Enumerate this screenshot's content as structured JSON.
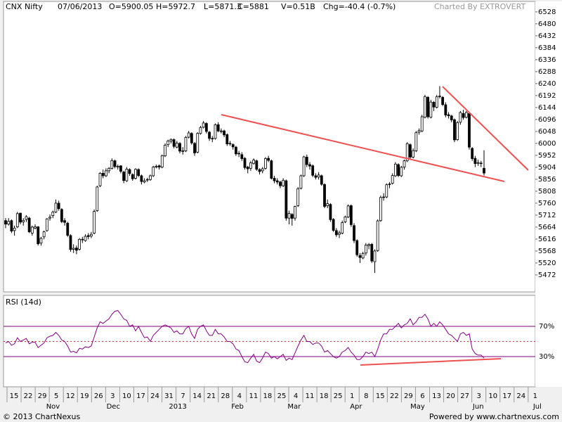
{
  "chart_data": [
    {
      "type": "candlestick",
      "title": "CNX Nifty",
      "date": "07/06/2013",
      "open_text": "O=5900.05",
      "high_text": "H=5972.7",
      "low_text": "L=5871.3",
      "close_text": "C=5881",
      "volume_text": "V=0.51B",
      "change_text": "Chg=-40.4 (-0.7%)",
      "credit": "Charted By EXTROVERT",
      "ylim": [
        5404,
        6570
      ],
      "yticks": [
        5472,
        5520,
        5568,
        5616,
        5664,
        5712,
        5760,
        5808,
        5856,
        5904,
        5952,
        6000,
        6048,
        6096,
        6144,
        6192,
        6240,
        6288,
        6336,
        6384,
        6432,
        6480,
        6528
      ],
      "up_color": "#ffffff",
      "down_color": "#000000",
      "candles": [
        [
          5690,
          5700,
          5660,
          5676
        ],
        [
          5676,
          5700,
          5670,
          5687
        ],
        [
          5690,
          5695,
          5640,
          5648
        ],
        [
          5650,
          5670,
          5630,
          5660
        ],
        [
          5665,
          5725,
          5660,
          5718
        ],
        [
          5720,
          5722,
          5675,
          5684
        ],
        [
          5685,
          5700,
          5670,
          5691
        ],
        [
          5695,
          5712,
          5685,
          5706
        ],
        [
          5700,
          5705,
          5640,
          5645
        ],
        [
          5640,
          5670,
          5630,
          5664
        ],
        [
          5660,
          5675,
          5655,
          5665
        ],
        [
          5665,
          5668,
          5590,
          5597
        ],
        [
          5600,
          5625,
          5590,
          5619
        ],
        [
          5625,
          5650,
          5615,
          5645
        ],
        [
          5650,
          5700,
          5645,
          5697
        ],
        [
          5700,
          5715,
          5690,
          5704
        ],
        [
          5710,
          5730,
          5700,
          5724
        ],
        [
          5725,
          5775,
          5720,
          5760
        ],
        [
          5760,
          5770,
          5730,
          5738
        ],
        [
          5735,
          5740,
          5680,
          5686
        ],
        [
          5690,
          5700,
          5670,
          5683
        ],
        [
          5680,
          5685,
          5625,
          5631
        ],
        [
          5630,
          5635,
          5565,
          5574
        ],
        [
          5575,
          5595,
          5560,
          5579
        ],
        [
          5580,
          5590,
          5555,
          5571
        ],
        [
          5575,
          5620,
          5570,
          5615
        ],
        [
          5615,
          5625,
          5600,
          5614
        ],
        [
          5610,
          5635,
          5605,
          5627
        ],
        [
          5630,
          5640,
          5615,
          5626
        ],
        [
          5628,
          5645,
          5620,
          5635
        ],
        [
          5640,
          5735,
          5635,
          5727
        ],
        [
          5730,
          5830,
          5725,
          5825
        ],
        [
          5830,
          5885,
          5825,
          5880
        ],
        [
          5880,
          5895,
          5860,
          5870
        ],
        [
          5870,
          5900,
          5865,
          5890
        ],
        [
          5890,
          5905,
          5880,
          5900
        ],
        [
          5900,
          5940,
          5895,
          5931
        ],
        [
          5930,
          5935,
          5900,
          5907
        ],
        [
          5905,
          5915,
          5895,
          5908
        ],
        [
          5910,
          5912,
          5880,
          5888
        ],
        [
          5885,
          5890,
          5840,
          5851
        ],
        [
          5850,
          5905,
          5845,
          5897
        ],
        [
          5895,
          5900,
          5870,
          5879
        ],
        [
          5875,
          5880,
          5850,
          5858
        ],
        [
          5860,
          5900,
          5855,
          5896
        ],
        [
          5895,
          5900,
          5865,
          5871
        ],
        [
          5870,
          5875,
          5835,
          5847
        ],
        [
          5845,
          5860,
          5840,
          5850
        ],
        [
          5855,
          5862,
          5845,
          5855
        ],
        [
          5855,
          5875,
          5850,
          5870
        ],
        [
          5870,
          5910,
          5865,
          5905
        ],
        [
          5905,
          5915,
          5900,
          5908
        ],
        [
          5910,
          5915,
          5895,
          5905
        ],
        [
          5905,
          5955,
          5900,
          5951
        ],
        [
          5950,
          6000,
          5945,
          5993
        ],
        [
          5995,
          6015,
          5985,
          6010
        ],
        [
          6010,
          6020,
          6000,
          6016
        ],
        [
          6015,
          6020,
          5980,
          5988
        ],
        [
          5985,
          6010,
          5980,
          6001
        ],
        [
          6000,
          6005,
          5960,
          5969
        ],
        [
          5970,
          5985,
          5955,
          5969
        ],
        [
          5970,
          6030,
          5965,
          6024
        ],
        [
          6025,
          6050,
          6020,
          6042
        ],
        [
          6040,
          6045,
          5995,
          6002
        ],
        [
          6000,
          6005,
          5950,
          5962
        ],
        [
          5965,
          6045,
          5960,
          6040
        ],
        [
          6040,
          6070,
          6035,
          6064
        ],
        [
          6065,
          6090,
          6060,
          6082
        ],
        [
          6080,
          6085,
          6040,
          6048
        ],
        [
          6045,
          6050,
          6010,
          6020
        ],
        [
          6020,
          6030,
          6005,
          6020
        ],
        [
          6020,
          6080,
          6015,
          6075
        ],
        [
          6075,
          6085,
          6045,
          6050
        ],
        [
          6050,
          6060,
          6040,
          6049
        ],
        [
          6050,
          6055,
          6025,
          6034
        ],
        [
          6035,
          6040,
          5990,
          5998
        ],
        [
          6000,
          6010,
          5990,
          5999
        ],
        [
          5995,
          6000,
          5975,
          5986
        ],
        [
          5985,
          5990,
          5950,
          5958
        ],
        [
          5960,
          5970,
          5945,
          5959
        ],
        [
          5955,
          5965,
          5930,
          5939
        ],
        [
          5940,
          5945,
          5895,
          5903
        ],
        [
          5905,
          5910,
          5880,
          5898
        ],
        [
          5900,
          5930,
          5890,
          5922
        ],
        [
          5920,
          5940,
          5915,
          5933
        ],
        [
          5930,
          5935,
          5890,
          5896
        ],
        [
          5895,
          5900,
          5875,
          5887
        ],
        [
          5890,
          5905,
          5880,
          5898
        ],
        [
          5900,
          5945,
          5895,
          5939
        ],
        [
          5940,
          5950,
          5925,
          5932
        ],
        [
          5930,
          5935,
          5855,
          5860
        ],
        [
          5860,
          5870,
          5840,
          5850
        ],
        [
          5850,
          5860,
          5835,
          5845
        ],
        [
          5845,
          5850,
          5820,
          5830
        ],
        [
          5830,
          5860,
          5825,
          5852
        ],
        [
          5850,
          5855,
          5690,
          5700
        ],
        [
          5700,
          5730,
          5675,
          5719
        ],
        [
          5715,
          5720,
          5670,
          5699
        ],
        [
          5700,
          5750,
          5690,
          5747
        ],
        [
          5750,
          5825,
          5745,
          5818
        ],
        [
          5820,
          5875,
          5815,
          5870
        ],
        [
          5870,
          5950,
          5865,
          5946
        ],
        [
          5945,
          5955,
          5905,
          5915
        ],
        [
          5915,
          5925,
          5895,
          5909
        ],
        [
          5910,
          5915,
          5865,
          5872
        ],
        [
          5870,
          5880,
          5855,
          5864
        ],
        [
          5865,
          5885,
          5855,
          5873
        ],
        [
          5870,
          5875,
          5830,
          5836
        ],
        [
          5835,
          5840,
          5740,
          5747
        ],
        [
          5750,
          5775,
          5740,
          5758
        ],
        [
          5755,
          5760,
          5685,
          5694
        ],
        [
          5695,
          5700,
          5645,
          5651
        ],
        [
          5650,
          5660,
          5625,
          5633
        ],
        [
          5635,
          5650,
          5620,
          5641
        ],
        [
          5640,
          5690,
          5635,
          5682
        ],
        [
          5685,
          5710,
          5680,
          5705
        ],
        [
          5705,
          5755,
          5700,
          5749
        ],
        [
          5750,
          5755,
          5665,
          5674
        ],
        [
          5670,
          5680,
          5600,
          5610
        ],
        [
          5610,
          5615,
          5545,
          5553
        ],
        [
          5550,
          5560,
          5520,
          5542
        ],
        [
          5540,
          5565,
          5535,
          5558
        ],
        [
          5560,
          5600,
          5550,
          5592
        ],
        [
          5590,
          5600,
          5575,
          5594
        ],
        [
          5595,
          5600,
          5520,
          5528
        ],
        [
          5525,
          5575,
          5480,
          5568
        ],
        [
          5570,
          5695,
          5565,
          5689
        ],
        [
          5690,
          5790,
          5685,
          5783
        ],
        [
          5785,
          5800,
          5770,
          5783
        ],
        [
          5785,
          5840,
          5780,
          5834
        ],
        [
          5835,
          5845,
          5820,
          5837
        ],
        [
          5840,
          5880,
          5835,
          5871
        ],
        [
          5870,
          5925,
          5865,
          5917
        ],
        [
          5915,
          5920,
          5865,
          5871
        ],
        [
          5870,
          5910,
          5865,
          5904
        ],
        [
          5905,
          5935,
          5895,
          5930
        ],
        [
          5930,
          6005,
          5925,
          5999
        ],
        [
          5995,
          6000,
          5935,
          5945
        ],
        [
          5945,
          5980,
          5940,
          5971
        ],
        [
          5970,
          6050,
          5965,
          6043
        ],
        [
          6045,
          6060,
          6035,
          6051
        ],
        [
          6050,
          6115,
          6045,
          6107
        ],
        [
          6105,
          6195,
          6100,
          6188
        ],
        [
          6185,
          6190,
          6100,
          6107
        ],
        [
          6105,
          6175,
          6100,
          6166
        ],
        [
          6165,
          6170,
          6130,
          6146
        ],
        [
          6145,
          6195,
          6140,
          6187
        ],
        [
          6190,
          6230,
          6180,
          6188
        ],
        [
          6185,
          6190,
          6150,
          6156
        ],
        [
          6155,
          6165,
          6105,
          6114
        ],
        [
          6115,
          6125,
          6100,
          6111
        ],
        [
          6110,
          6115,
          6085,
          6094
        ],
        [
          6095,
          6100,
          6005,
          6014
        ],
        [
          6015,
          6090,
          6010,
          6083
        ],
        [
          6085,
          6130,
          6075,
          6124
        ],
        [
          6120,
          6135,
          6095,
          6104
        ],
        [
          6105,
          6130,
          6100,
          6124
        ],
        [
          6120,
          6125,
          5975,
          5985
        ],
        [
          5980,
          5985,
          5930,
          5939
        ],
        [
          5940,
          5950,
          5905,
          5919
        ],
        [
          5920,
          5935,
          5910,
          5923
        ],
        [
          5920,
          5930,
          5905,
          5921
        ],
        [
          5900.05,
          5972.7,
          5871.3,
          5881
        ]
      ]
    },
    {
      "type": "line",
      "title": "RSI (14d)",
      "color": "#800080",
      "level_color": "#800080",
      "midline_color": "#cc3333",
      "ylim": [
        -10,
        111
      ],
      "yticks": [
        {
          "value": 30,
          "label": "30%"
        },
        {
          "value": 70,
          "label": "70%"
        }
      ],
      "midline": 50,
      "values": [
        48,
        50,
        45,
        47,
        55,
        50,
        52,
        54,
        47,
        49,
        49,
        42,
        45,
        48,
        55,
        57,
        58,
        62,
        58,
        52,
        50,
        44,
        36,
        37,
        35,
        41,
        40,
        43,
        42,
        44,
        56,
        68,
        76,
        74,
        77,
        80,
        86,
        90,
        91,
        86,
        80,
        78,
        70,
        72,
        64,
        70,
        62,
        55,
        56,
        50,
        58,
        62,
        66,
        70,
        72,
        70,
        68,
        62,
        64,
        60,
        60,
        67,
        70,
        60,
        54,
        66,
        70,
        72,
        64,
        58,
        58,
        66,
        60,
        60,
        56,
        50,
        50,
        47,
        40,
        38,
        30,
        23,
        22,
        28,
        33,
        24,
        22,
        28,
        36,
        34,
        28,
        30,
        27,
        30,
        33,
        25,
        28,
        26,
        35,
        44,
        52,
        58,
        50,
        50,
        46,
        48,
        48,
        44,
        36,
        38,
        34,
        30,
        28,
        30,
        36,
        38,
        42,
        36,
        32,
        26,
        26,
        30,
        36,
        34,
        36,
        30,
        40,
        52,
        60,
        60,
        66,
        66,
        70,
        74,
        68,
        72,
        74,
        80,
        72,
        76,
        82,
        82,
        86,
        80,
        70,
        74,
        70,
        76,
        72,
        66,
        60,
        58,
        54,
        50,
        60,
        62,
        58,
        60,
        40,
        34,
        32,
        32,
        28
      ],
      "week_labels": [
        15,
        22,
        29,
        5,
        12,
        19,
        26,
        3,
        10,
        17,
        24,
        31,
        7,
        14,
        21,
        28,
        4,
        11,
        18,
        25,
        4,
        11,
        18,
        25,
        1,
        8,
        15,
        22,
        29,
        6,
        13,
        20,
        27,
        3,
        10,
        17,
        24,
        1
      ],
      "month_labels": [
        "Nov",
        "Dec",
        "2013",
        "Feb",
        "Mar",
        "Apr",
        "May",
        "Jun",
        "Jul"
      ]
    }
  ],
  "footer": {
    "left": "© 2013 ChartNexus",
    "right": "Powered by www.chartnexus.com"
  }
}
